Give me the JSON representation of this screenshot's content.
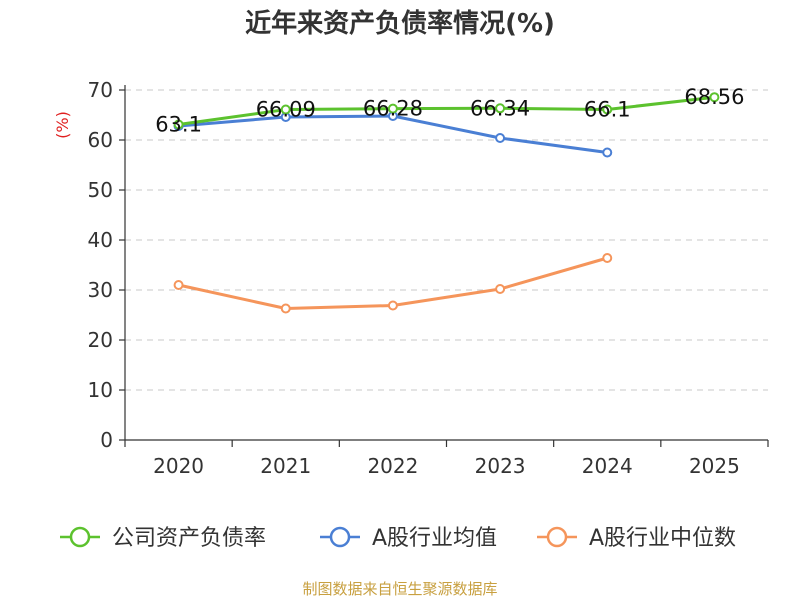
{
  "chart_data": {
    "type": "line",
    "title": "近年来资产负债率情况(%)",
    "ylabel": "(%)",
    "ylim": [
      0,
      70
    ],
    "yticks": [
      0,
      10,
      20,
      30,
      40,
      50,
      60,
      70
    ],
    "categories": [
      "2020",
      "2021",
      "2022",
      "2023",
      "2024",
      "2025"
    ],
    "grid": true,
    "legend": "bottom",
    "series": [
      {
        "name": "公司资产负债率",
        "color": "#5cc22e",
        "values": [
          63.1,
          66.09,
          66.28,
          66.34,
          66.1,
          68.56
        ],
        "labels": [
          "63.1",
          "66.09",
          "66.28",
          "66.34",
          "66.1",
          "68.56"
        ]
      },
      {
        "name": "A股行业均值",
        "color": "#4a7fd4",
        "values": [
          62.8,
          64.6,
          64.8,
          60.4,
          57.5,
          null
        ]
      },
      {
        "name": "A股行业中位数",
        "color": "#f5955b",
        "values": [
          31.0,
          26.3,
          26.9,
          30.2,
          36.4,
          null
        ]
      }
    ]
  },
  "source": "制图数据来自恒生聚源数据库"
}
